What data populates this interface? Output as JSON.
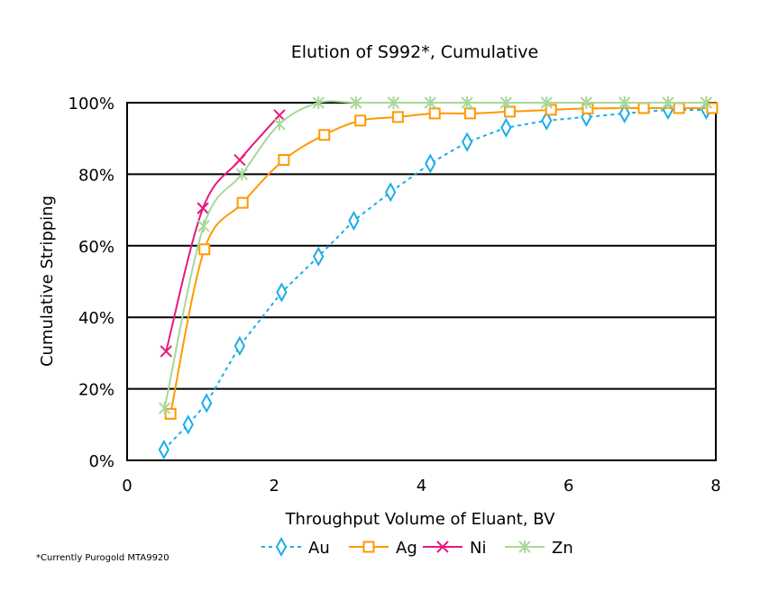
{
  "chart_data": {
    "type": "line",
    "title": "Elution of S992*, Cumulative",
    "xlabel": "Throughput Volume of Eluant, BV",
    "ylabel": "Cumulative Stripping",
    "xlim": [
      0,
      8
    ],
    "ylim": [
      0,
      100
    ],
    "xticks": [
      "0",
      "2",
      "4",
      "6",
      "8"
    ],
    "yticks": [
      "0%",
      "20%",
      "40%",
      "60%",
      "80%",
      "100%"
    ],
    "grid": "horizontal",
    "legend": "bottom",
    "footnote": "*Currently Purogold MTA9920",
    "series": [
      {
        "name": "Au",
        "color": "#1aaee8",
        "marker": "diamond",
        "dashed": true,
        "smooth": false,
        "x": [
          0.5,
          0.83,
          1.08,
          1.53,
          2.1,
          2.6,
          3.08,
          3.58,
          4.12,
          4.62,
          5.15,
          5.7,
          6.24,
          6.76,
          7.35,
          7.87
        ],
        "y": [
          3,
          10,
          16,
          32,
          47,
          57,
          67,
          75,
          83,
          89,
          93,
          95,
          96,
          97,
          98,
          98
        ]
      },
      {
        "name": "Ag",
        "color": "#ff9900",
        "marker": "square",
        "dashed": false,
        "smooth": true,
        "x": [
          0.59,
          1.05,
          1.57,
          2.13,
          2.68,
          3.17,
          3.68,
          4.18,
          4.66,
          5.2,
          5.76,
          6.26,
          7.02,
          7.5,
          7.95
        ],
        "y": [
          13,
          59,
          72,
          84,
          91,
          95,
          96,
          97,
          97,
          97.5,
          98,
          98.4,
          98.5,
          98.5,
          98.5
        ]
      },
      {
        "name": "Ni",
        "color": "#e6187f",
        "marker": "x",
        "dashed": false,
        "smooth": true,
        "x": [
          0.53,
          1.03,
          1.53,
          2.07
        ],
        "y": [
          30.5,
          70.5,
          84,
          96.5
        ]
      },
      {
        "name": "Zn",
        "color": "#a8d89a",
        "marker": "asterisk",
        "dashed": false,
        "smooth": true,
        "x": [
          0.51,
          1.04,
          1.56,
          2.07,
          2.6,
          3.11,
          3.62,
          4.12,
          4.62,
          5.15,
          5.7,
          6.24,
          6.76,
          7.35,
          7.87
        ],
        "y": [
          14.6,
          65.5,
          80,
          94,
          100,
          100,
          100,
          100,
          100,
          100,
          100,
          100,
          100,
          100,
          100
        ]
      }
    ]
  }
}
